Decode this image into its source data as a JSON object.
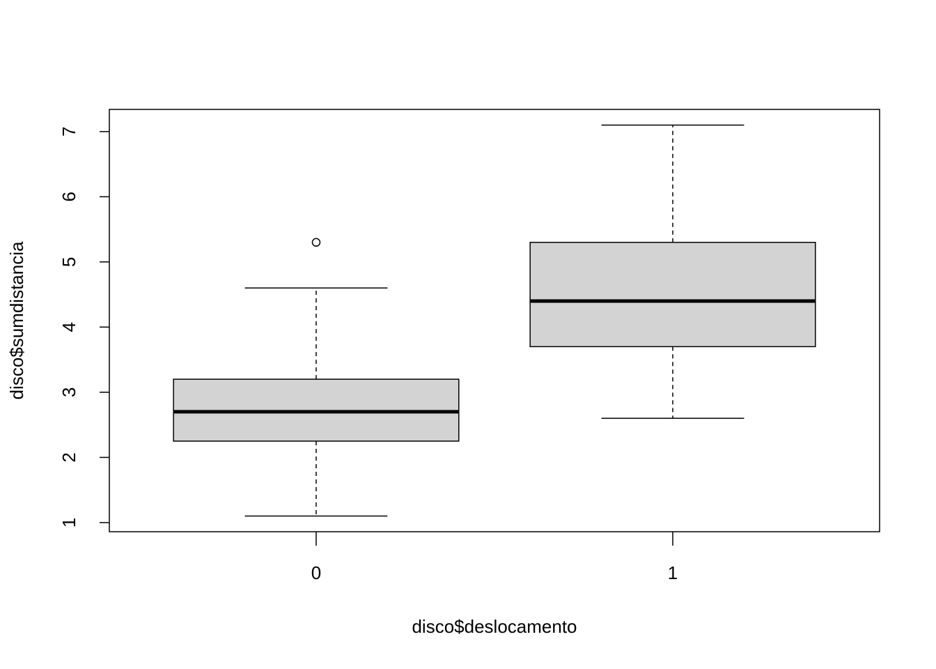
{
  "chart_data": {
    "type": "boxplot",
    "x_label": "disco$deslocamento",
    "y_label": "disco$sumdistancia",
    "categories": [
      "0",
      "1"
    ],
    "color": "#d3d3d3",
    "boxes": [
      {
        "whislo": 1.1,
        "q1": 2.25,
        "med": 2.7,
        "q3": 3.2,
        "whishi": 4.6,
        "outliers": [
          5.3
        ]
      },
      {
        "whislo": 2.6,
        "q1": 3.7,
        "med": 4.4,
        "q3": 5.3,
        "whishi": 7.1,
        "outliers": []
      }
    ],
    "ylim": [
      0.86,
      7.34
    ],
    "yticks": [
      1,
      2,
      3,
      4,
      5,
      6,
      7
    ]
  }
}
